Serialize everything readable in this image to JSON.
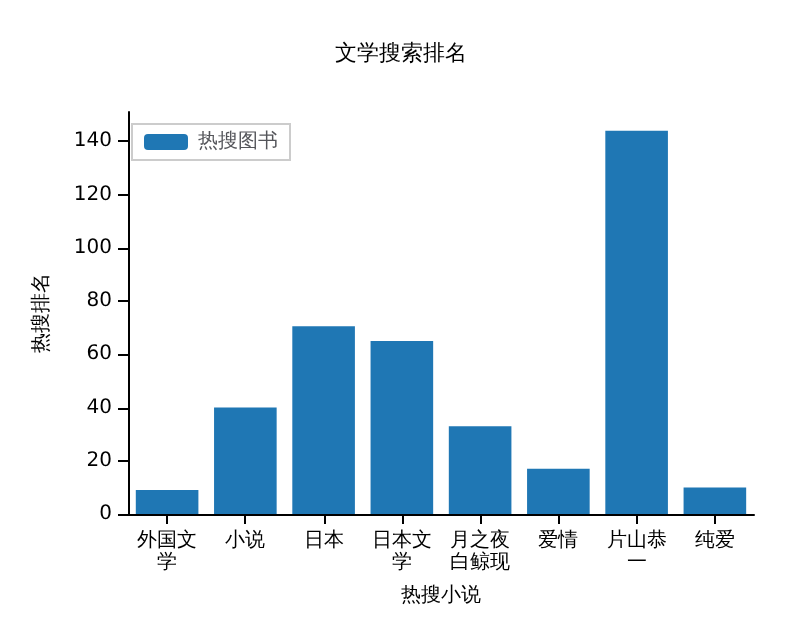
{
  "chart_data": {
    "type": "bar",
    "title": "文学搜索排名",
    "xlabel": "热搜小说",
    "ylabel": "热搜排名",
    "categories": [
      "外国文学",
      "小说",
      "日本",
      "日本文学",
      "月之夜白鲸现",
      "爱情",
      "片山恭一",
      "纯爱"
    ],
    "series": [
      {
        "name": "热搜图书",
        "color": "#1f77b4",
        "values": [
          9,
          40,
          70.5,
          65,
          33,
          17,
          144,
          10
        ]
      }
    ],
    "ylim": [
      0,
      151
    ],
    "yticks": [
      0,
      20,
      40,
      60,
      80,
      100,
      120,
      140
    ],
    "grid": false,
    "legend": "top left"
  }
}
